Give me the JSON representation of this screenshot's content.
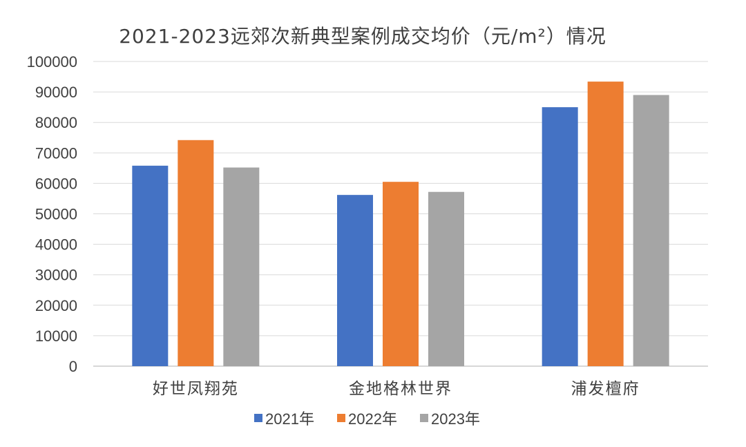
{
  "chart_data": {
    "type": "bar",
    "title": "2021-2023远郊次新典型案例成交均价（元/m²）情况",
    "categories": [
      "好世凤翔苑",
      "金地格林世界",
      "浦发檀府"
    ],
    "series": [
      {
        "name": "2021年",
        "color": "#4472C4",
        "values": [
          65800,
          56200,
          85000
        ]
      },
      {
        "name": "2022年",
        "color": "#ED7D31",
        "values": [
          74200,
          60500,
          93400
        ]
      },
      {
        "name": "2023年",
        "color": "#A5A5A5",
        "values": [
          65200,
          57200,
          89000
        ]
      }
    ],
    "ylim": [
      0,
      100000
    ],
    "yticks": [
      "0",
      "10000",
      "20000",
      "30000",
      "40000",
      "50000",
      "60000",
      "70000",
      "80000",
      "90000",
      "100000"
    ],
    "grid": true,
    "legend_position": "bottom"
  }
}
